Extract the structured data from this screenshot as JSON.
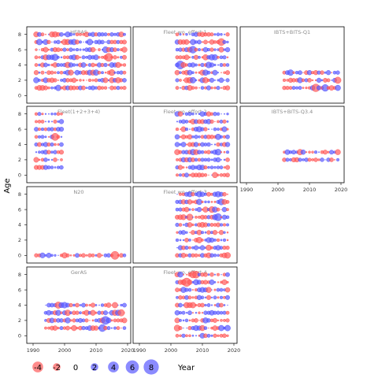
{
  "chart_data": {
    "type": "scatter",
    "kind": "bubble-residual-grid",
    "ylabel": "Age",
    "xlabel": "Year",
    "xlim": [
      1988,
      2021
    ],
    "ylim": [
      -1,
      9
    ],
    "xticks": [
      1990,
      2000,
      2010,
      2020
    ],
    "yticks": [
      0,
      2,
      4,
      6,
      8
    ],
    "colors": {
      "negative": "#ff5a5a",
      "positive": "#5a5aff"
    },
    "legend": {
      "position": "bottom-left",
      "values": [
        -4,
        -2,
        0,
        2,
        4,
        6,
        8
      ],
      "labels": [
        "-4",
        "-2",
        "0",
        "2",
        "4",
        "6",
        "8"
      ]
    },
    "panels": [
      {
        "title": "HERAS",
        "years": [
          1991,
          2019
        ],
        "ages": [
          1,
          2,
          3,
          4,
          5,
          6,
          7,
          8
        ],
        "seed": 11
      },
      {
        "title": "Fleet wo. effort 1",
        "years": [
          2002,
          2018
        ],
        "ages": [
          1,
          2,
          3,
          4,
          5,
          6,
          7,
          8
        ],
        "seed": 23
      },
      {
        "title": "IBTS+BITS-Q1",
        "years": [
          2002,
          2019
        ],
        "ages": [
          1,
          2,
          3
        ],
        "seed": 37
      },
      {
        "title": "Fleet(1+2+3+4)",
        "years": [
          1991,
          1999
        ],
        "ages": [
          1,
          2,
          3,
          4,
          5,
          6,
          7,
          8
        ],
        "seed": 41
      },
      {
        "title": "Fleet wo. effort 2",
        "years": [
          2002,
          2018
        ],
        "ages": [
          0,
          1,
          2,
          3,
          4,
          5,
          6,
          7,
          8
        ],
        "seed": 53
      },
      {
        "title": "IBTS+BITS-Q3.4",
        "years": [
          2002,
          2019
        ],
        "ages": [
          2,
          3
        ],
        "seed": 61
      },
      {
        "title": "N20",
        "years": [
          1991,
          2019
        ],
        "ages": [
          0
        ],
        "seed": 71
      },
      {
        "title": "Fleet wo. effort 3",
        "years": [
          2002,
          2018
        ],
        "ages": [
          0,
          1,
          2,
          3,
          4,
          5,
          6,
          7,
          8
        ],
        "seed": 83
      },
      {
        "title": "GerAS",
        "years": [
          1994,
          2019
        ],
        "ages": [
          1,
          2,
          3,
          4
        ],
        "seed": 97
      },
      {
        "title": "Fleet wo. effort 4",
        "years": [
          2002,
          2018
        ],
        "ages": [
          0,
          1,
          2,
          3,
          4,
          5,
          6,
          7,
          8
        ],
        "seed": 101
      }
    ]
  }
}
